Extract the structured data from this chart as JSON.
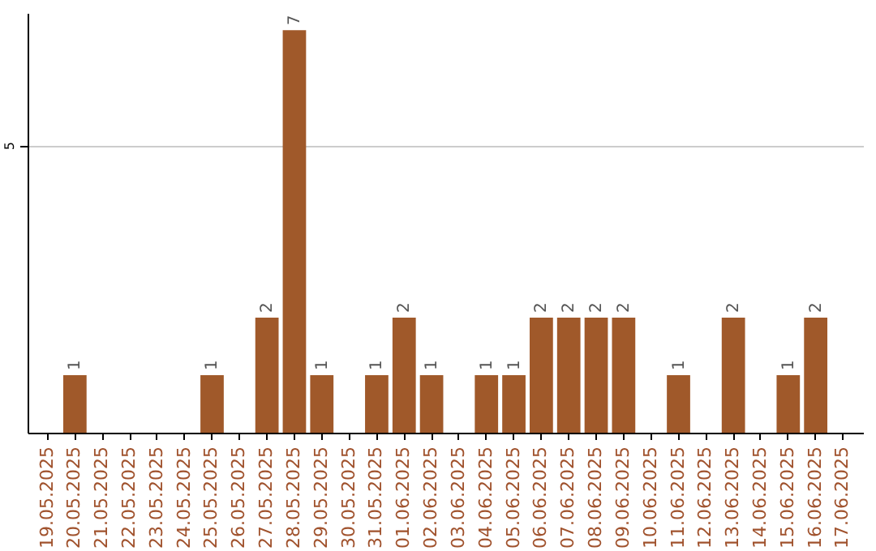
{
  "chart_data": {
    "type": "bar",
    "categories": [
      "19.05.2025",
      "20.05.2025",
      "21.05.2025",
      "22.05.2025",
      "23.05.2025",
      "24.05.2025",
      "25.05.2025",
      "26.05.2025",
      "27.05.2025",
      "28.05.2025",
      "29.05.2025",
      "30.05.2025",
      "31.05.2025",
      "01.06.2025",
      "02.06.2025",
      "03.06.2025",
      "04.06.2025",
      "05.06.2025",
      "06.06.2025",
      "07.06.2025",
      "08.06.2025",
      "09.06.2025",
      "10.06.2025",
      "11.06.2025",
      "12.06.2025",
      "13.06.2025",
      "14.06.2025",
      "15.06.2025",
      "16.06.2025",
      "17.06.2025"
    ],
    "values": [
      0,
      1,
      0,
      0,
      0,
      0,
      1,
      0,
      2,
      7,
      1,
      0,
      1,
      2,
      1,
      0,
      1,
      1,
      2,
      2,
      2,
      2,
      0,
      1,
      0,
      2,
      0,
      1,
      2,
      0
    ],
    "value_labels": [
      null,
      "1",
      null,
      null,
      null,
      null,
      "1",
      null,
      "2",
      "7",
      "1",
      null,
      "1",
      "2",
      "1",
      null,
      "1",
      "1",
      "2",
      "2",
      "2",
      "2",
      null,
      "1",
      null,
      "2",
      null,
      "1",
      "2",
      null
    ],
    "color": "#a0592a",
    "ylim": [
      0,
      7.3
    ],
    "yticks": [
      5
    ],
    "grid": "y"
  }
}
